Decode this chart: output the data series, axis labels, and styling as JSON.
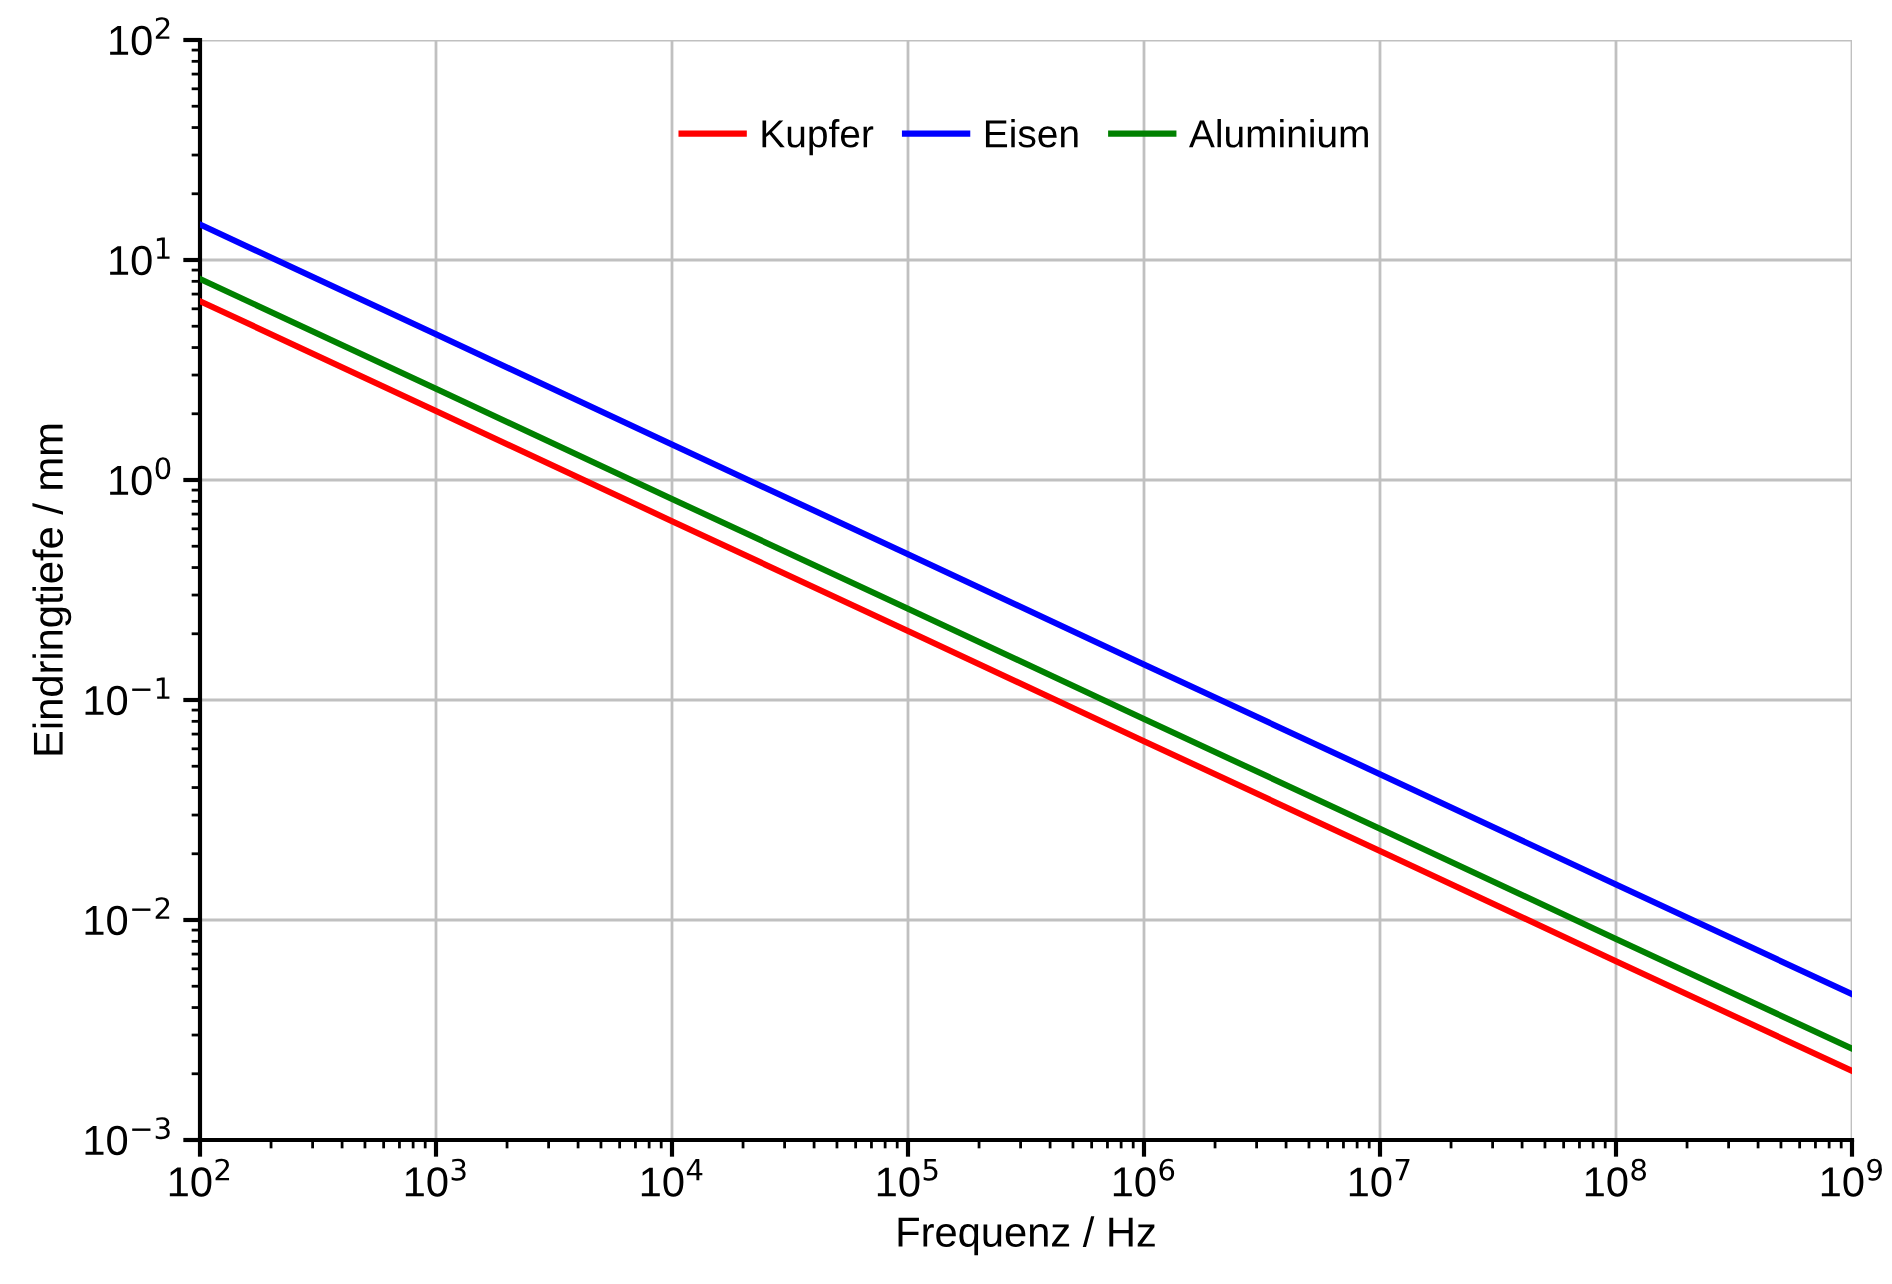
{
  "chart_data": {
    "type": "line",
    "xlabel": "Frequenz / Hz",
    "ylabel": "Eindringtiefe / mm",
    "x": [
      100,
      1000,
      10000,
      100000,
      1000000,
      10000000,
      100000000,
      1000000000
    ],
    "series": [
      {
        "name": "Kupfer",
        "color": "#ff0000",
        "values": [
          6.5,
          2.06,
          0.65,
          0.206,
          0.065,
          0.0206,
          0.0065,
          0.00206
        ]
      },
      {
        "name": "Eisen",
        "color": "#0000ff",
        "values": [
          14.5,
          4.6,
          1.45,
          0.46,
          0.145,
          0.046,
          0.0145,
          0.0046
        ]
      },
      {
        "name": "Aluminium",
        "color": "#008000",
        "values": [
          8.2,
          2.6,
          0.82,
          0.26,
          0.082,
          0.026,
          0.0082,
          0.0026
        ]
      }
    ],
    "log": "xy",
    "xlim": [
      100,
      1000000000
    ],
    "ylim": [
      0.001,
      100
    ],
    "xticks": [
      {
        "value": 100,
        "label": "10$^{2}$"
      },
      {
        "value": 1000,
        "label": "10$^{3}$"
      },
      {
        "value": 10000,
        "label": "10$^{4}$"
      },
      {
        "value": 100000,
        "label": "10$^{5}$"
      },
      {
        "value": 1000000,
        "label": "10$^{6}$"
      },
      {
        "value": 10000000,
        "label": "10$^{7}$"
      },
      {
        "value": 100000000,
        "label": "10$^{8}$"
      },
      {
        "value": 1000000000,
        "label": "10$^{9}$"
      }
    ],
    "yticks": [
      {
        "value": 0.001,
        "label": "10$^{−3}$"
      },
      {
        "value": 0.01,
        "label": "10$^{−2}$"
      },
      {
        "value": 0.1,
        "label": "10$^{−1}$"
      },
      {
        "value": 1,
        "label": "10$^{0}$"
      },
      {
        "value": 10,
        "label": "10$^{1}$"
      },
      {
        "value": 100,
        "label": "10$^{2}$"
      }
    ],
    "grid": true,
    "legend": "top",
    "line_style": "solid",
    "marker": "none"
  }
}
